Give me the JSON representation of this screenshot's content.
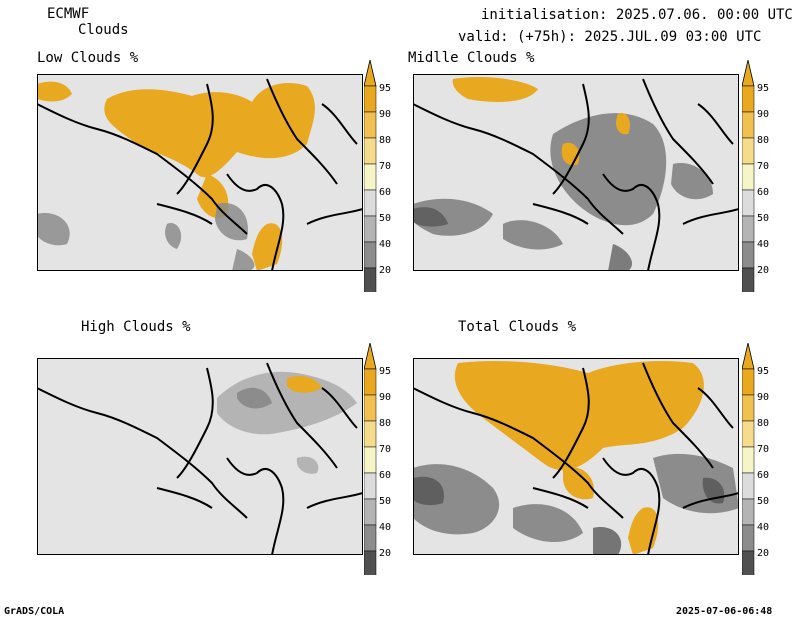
{
  "header": {
    "model": "ECMWF",
    "product": "Clouds",
    "init": "initialisation: 2025.07.06. 00:00 UTC",
    "valid": "valid: (+75h): 2025.JUL.09 03:00 UTC"
  },
  "panels": [
    {
      "id": "low",
      "title": "Low Clouds %"
    },
    {
      "id": "middle",
      "title": "Midlle Clouds %"
    },
    {
      "id": "high",
      "title": "High Clouds %"
    },
    {
      "id": "total",
      "title": "Total Clouds %"
    }
  ],
  "colorbar": {
    "levels": [
      "95",
      "90",
      "80",
      "70",
      "60",
      "50",
      "40",
      "20"
    ],
    "colors": [
      "#e8a820",
      "#f0c050",
      "#f5dc8c",
      "#f5f5c8",
      "#dcdcdc",
      "#b4b4b4",
      "#8c8c8c",
      "#505050"
    ]
  },
  "footer": {
    "left": "GrADS/COLA",
    "right": "2025-07-06-06:48"
  }
}
